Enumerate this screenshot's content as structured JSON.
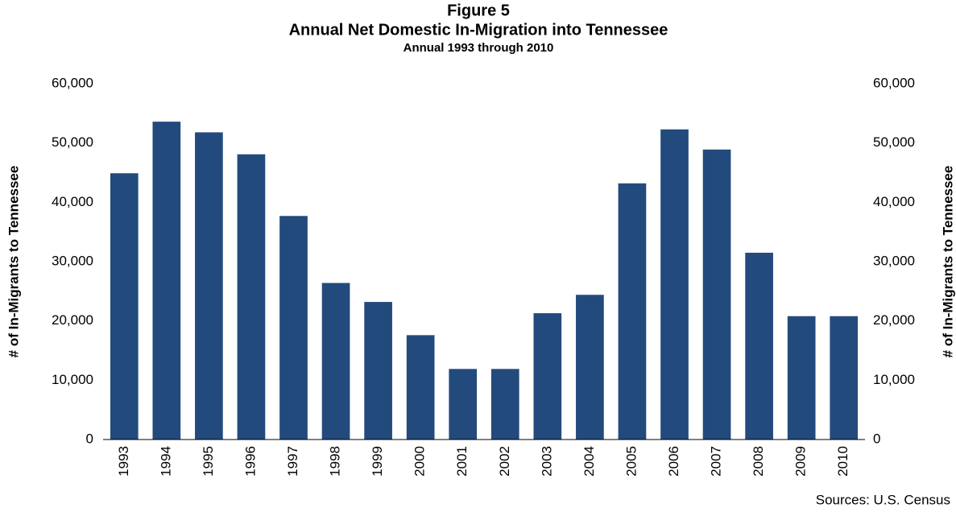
{
  "chart_data": {
    "type": "bar",
    "title": "Figure 5",
    "subtitle": "Annual Net Domestic In-Migration into Tennessee",
    "subtitle2": "Annual 1993 through 2010",
    "y_label": "# of In-Migrants to Tennessee",
    "y2_label": "# of In-Migrants to Tennessee",
    "source": "Sources: U.S. Census",
    "categories": [
      "1993",
      "1994",
      "1995",
      "1996",
      "1997",
      "1998",
      "1999",
      "2000",
      "2001",
      "2002",
      "2003",
      "2004",
      "2005",
      "2006",
      "2007",
      "2008",
      "2009",
      "2010"
    ],
    "values": [
      44900,
      53600,
      51800,
      48100,
      37700,
      26400,
      23200,
      17600,
      11900,
      11900,
      21300,
      24400,
      43200,
      52300,
      48900,
      31500,
      20800,
      20800
    ],
    "color": "#234a7c",
    "ylim": [
      0,
      60000
    ],
    "yticks": [
      0,
      {
        "value": 10000,
        "label": "10,000"
      },
      {
        "value": 20000,
        "label": "20,000"
      },
      {
        "value": 30000,
        "label": "30,000"
      },
      {
        "value": 40000,
        "label": "40,000"
      },
      {
        "value": 50000,
        "label": "50,000"
      },
      {
        "value": 60000,
        "label": "60,000"
      }
    ],
    "y2lim": [
      0,
      60000
    ],
    "y2ticks": [
      0,
      {
        "value": 10000,
        "label": "10,000"
      },
      {
        "value": 20000,
        "label": "20,000"
      },
      {
        "value": 30000,
        "label": "30,000"
      },
      {
        "value": 40000,
        "label": "40,000"
      },
      {
        "value": 50000,
        "label": "50,000"
      },
      {
        "value": 60000,
        "label": "60,000"
      }
    ]
  }
}
